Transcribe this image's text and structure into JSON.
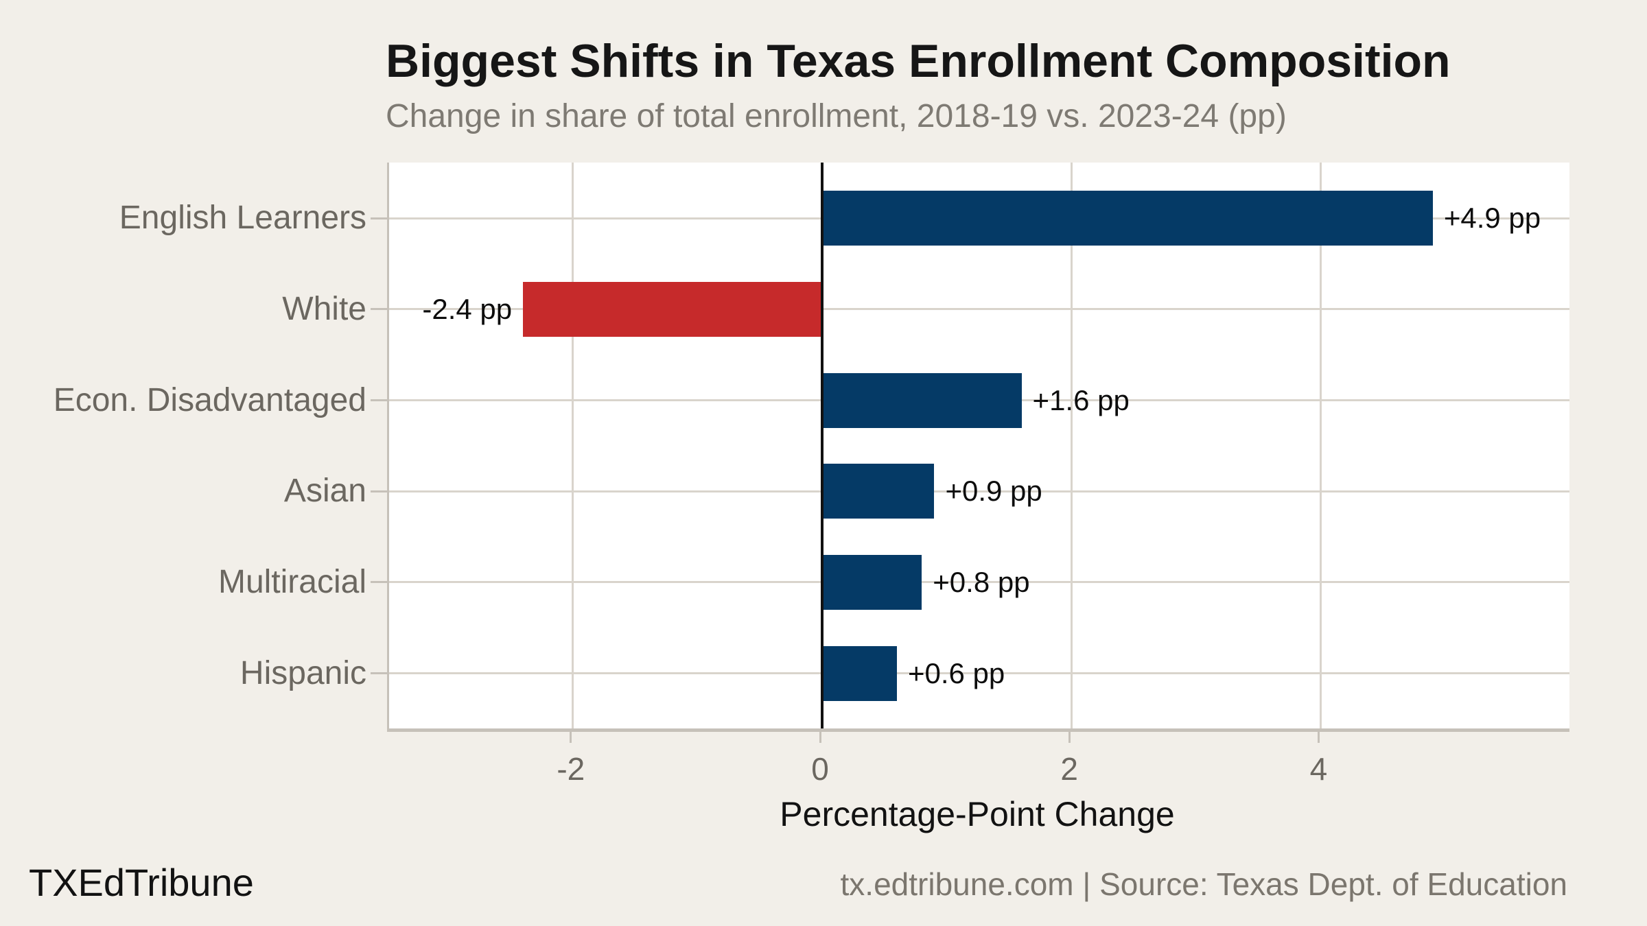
{
  "header": {
    "title": "Biggest Shifts in Texas Enrollment Composition",
    "subtitle": "Change in share of total enrollment, 2018-19 vs. 2023-24 (pp)"
  },
  "chart_data": {
    "type": "bar",
    "orientation": "horizontal",
    "title": "Biggest Shifts in Texas Enrollment Composition",
    "subtitle": "Change in share of total enrollment, 2018-19 vs. 2023-24 (pp)",
    "categories": [
      "English Learners",
      "White",
      "Econ. Disadvantaged",
      "Asian",
      "Multiracial",
      "Hispanic"
    ],
    "values": [
      4.9,
      -2.4,
      1.6,
      0.9,
      0.8,
      0.6
    ],
    "value_labels": [
      "+4.9 pp",
      "-2.4 pp",
      "+1.6 pp",
      "+0.9 pp",
      "+0.8 pp",
      "+0.6 pp"
    ],
    "xlabel": "Percentage-Point Change",
    "x_ticks": [
      -2,
      0,
      2,
      4
    ],
    "xlim": [
      -3.47,
      6.03
    ],
    "grid": true,
    "legend": "none",
    "colors": {
      "positive_bar": "#053a66",
      "negative_bar": "#c62a2b",
      "zero_line": "#111111",
      "gridline": "#d9d4cc",
      "plot_background": "#ffffff",
      "page_background": "#f2efe9"
    }
  },
  "footer": {
    "brand": "TXEdTribune",
    "source": "tx.edtribune.com | Source: Texas Dept. of Education"
  }
}
